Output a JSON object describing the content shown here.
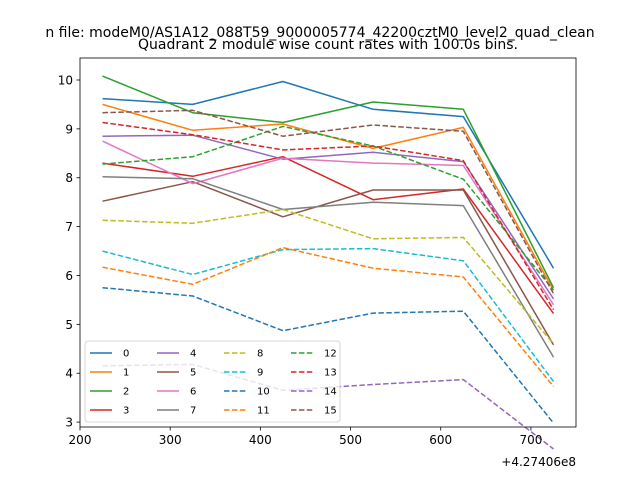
{
  "chart_data": {
    "type": "line",
    "suptitle": "n file: modeM0/AS1A12_088T59_9000005774_42200cztM0_level2_quad_clean",
    "title": "Quadrant 2 module wise count rates with 100.0s bins.",
    "xlabel": "",
    "ylabel": "",
    "x_offset_label": "+4.27406e8",
    "xlim": [
      200,
      750
    ],
    "ylim": [
      2.9,
      10.45
    ],
    "xticks": [
      200,
      300,
      400,
      500,
      600,
      700
    ],
    "yticks": [
      3,
      4,
      5,
      6,
      7,
      8,
      9,
      10
    ],
    "x": [
      225,
      325,
      425,
      525,
      625,
      725
    ],
    "series": [
      {
        "name": "0",
        "color": "#1f77b4",
        "dashed": false,
        "values": [
          9.62,
          9.5,
          9.97,
          9.4,
          9.25,
          6.15
        ]
      },
      {
        "name": "1",
        "color": "#ff7f0e",
        "dashed": false,
        "values": [
          9.5,
          8.97,
          9.1,
          8.6,
          9.03,
          5.7
        ]
      },
      {
        "name": "2",
        "color": "#2ca02c",
        "dashed": false,
        "values": [
          10.08,
          9.33,
          9.13,
          9.55,
          9.4,
          5.75
        ]
      },
      {
        "name": "3",
        "color": "#d62728",
        "dashed": false,
        "values": [
          8.3,
          8.03,
          8.43,
          7.55,
          7.77,
          5.22
        ]
      },
      {
        "name": "4",
        "color": "#9467bd",
        "dashed": false,
        "values": [
          8.85,
          8.87,
          8.38,
          8.52,
          8.33,
          5.52
        ]
      },
      {
        "name": "5",
        "color": "#8c564b",
        "dashed": false,
        "values": [
          7.52,
          7.92,
          7.2,
          7.75,
          7.75,
          4.58
        ]
      },
      {
        "name": "6",
        "color": "#e377c2",
        "dashed": false,
        "values": [
          8.75,
          7.88,
          8.4,
          8.3,
          8.25,
          5.4
        ]
      },
      {
        "name": "7",
        "color": "#7f7f7f",
        "dashed": false,
        "values": [
          8.02,
          7.98,
          7.35,
          7.5,
          7.43,
          4.33
        ]
      },
      {
        "name": "8",
        "color": "#bcbd22",
        "dashed": true,
        "values": [
          7.13,
          7.07,
          7.35,
          6.75,
          6.78,
          4.6
        ]
      },
      {
        "name": "9",
        "color": "#17becf",
        "dashed": true,
        "values": [
          6.5,
          6.02,
          6.53,
          6.55,
          6.3,
          3.83
        ]
      },
      {
        "name": "10",
        "color": "#1f77b4",
        "dashed": true,
        "values": [
          5.75,
          5.58,
          4.87,
          5.23,
          5.27,
          2.98
        ]
      },
      {
        "name": "11",
        "color": "#ff7f0e",
        "dashed": true,
        "values": [
          6.17,
          5.82,
          6.57,
          6.15,
          5.97,
          3.73
        ]
      },
      {
        "name": "12",
        "color": "#2ca02c",
        "dashed": true,
        "values": [
          8.28,
          8.43,
          9.05,
          8.65,
          7.97,
          5.7
        ]
      },
      {
        "name": "13",
        "color": "#d62728",
        "dashed": true,
        "values": [
          9.13,
          8.88,
          8.57,
          8.65,
          8.35,
          5.3
        ]
      },
      {
        "name": "14",
        "color": "#9467bd",
        "dashed": true,
        "values": [
          4.15,
          4.18,
          3.65,
          3.77,
          3.87,
          2.45
        ]
      },
      {
        "name": "15",
        "color": "#8c564b",
        "dashed": true,
        "values": [
          9.33,
          9.38,
          8.85,
          9.08,
          8.95,
          5.63
        ]
      }
    ],
    "legend": {
      "location": "lower-left",
      "columns": 4
    },
    "grid": false
  }
}
